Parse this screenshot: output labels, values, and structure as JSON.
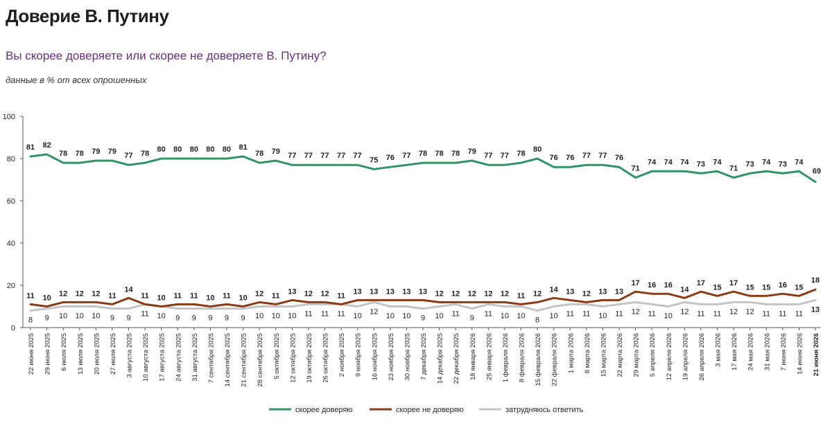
{
  "title": "Доверие В. Путину",
  "subtitle": "Вы скорее доверяете или скорее не доверяете В. Путину?",
  "note": "данные в % от всех опрошенных",
  "chart_data": {
    "type": "line",
    "title": "Доверие В. Путину",
    "subtitle": "Вы скорее доверяете или скорее не доверяете В. Путину?",
    "ylabel": "",
    "xlabel": "",
    "ylim": [
      0,
      100
    ],
    "yticks": [
      0,
      20,
      40,
      60,
      80,
      100
    ],
    "grid": false,
    "legend_position": "bottom",
    "categories": [
      "22 июня 2025",
      "29 июня 2025",
      "6 июля 2025",
      "13 июля 2025",
      "20 июля 2025",
      "27 июля 2025",
      "3 августа 2025",
      "10 августа 2025",
      "17 августа 2025",
      "24 августа 2025",
      "31 августа 2025",
      "7 сентября 2025",
      "14 сентября 2025",
      "21 сентября 2025",
      "28 сентября 2025",
      "5 октября 2025",
      "12 октября 2025",
      "19 октября 2025",
      "26 октября 2025",
      "2 ноября 2025",
      "9 ноября 2025",
      "16 ноября 2025",
      "23 ноября 2025",
      "30 ноября 2025",
      "7 декабря 2025",
      "14 декабря 2025",
      "22 декабря 2025",
      "18 января 2026",
      "25 января 2026",
      "1 февраля 2026",
      "8 февраля 2026",
      "15 февраля 2026",
      "22 февраля 2026",
      "1 марта 2026",
      "8 марта 2026",
      "15 марта 2026",
      "22 марта 2026",
      "29 марта 2026",
      "5 апреля 2026",
      "12 апреля 2026",
      "19 апреля 2026",
      "26 апреля 2026",
      "3 мая 2026",
      "17 мая 2026",
      "24 мая 2026",
      "31 мая 2026",
      "7 июня 2026",
      "14 июня 2026",
      "21 июня 2026"
    ],
    "series": [
      {
        "name": "скорее доверяю",
        "color": "#2e9463",
        "values": [
          81,
          82,
          78,
          78,
          79,
          79,
          77,
          78,
          80,
          80,
          80,
          80,
          80,
          81,
          78,
          79,
          77,
          77,
          77,
          77,
          77,
          75,
          76,
          77,
          78,
          78,
          78,
          79,
          77,
          77,
          78,
          80,
          76,
          76,
          77,
          77,
          76,
          71,
          74,
          74,
          74,
          73,
          74,
          71,
          73,
          74,
          73,
          74,
          69
        ]
      },
      {
        "name": "скорее не доверяю",
        "color": "#8b3a14",
        "values": [
          11,
          10,
          12,
          12,
          12,
          11,
          14,
          11,
          10,
          11,
          11,
          10,
          11,
          10,
          12,
          11,
          13,
          12,
          12,
          11,
          13,
          13,
          13,
          13,
          13,
          12,
          12,
          12,
          12,
          12,
          11,
          12,
          14,
          13,
          12,
          13,
          13,
          17,
          16,
          16,
          14,
          17,
          15,
          17,
          15,
          15,
          16,
          15,
          18
        ]
      },
      {
        "name": "затрудняюсь ответить",
        "color": "#c4c4c4",
        "values": [
          8,
          9,
          10,
          10,
          10,
          9,
          9,
          11,
          10,
          9,
          9,
          9,
          9,
          9,
          10,
          10,
          10,
          11,
          11,
          11,
          10,
          12,
          10,
          10,
          9,
          10,
          11,
          9,
          11,
          10,
          10,
          8,
          10,
          11,
          11,
          10,
          11,
          12,
          11,
          10,
          12,
          11,
          11,
          12,
          12,
          11,
          11,
          11,
          13
        ]
      }
    ]
  }
}
